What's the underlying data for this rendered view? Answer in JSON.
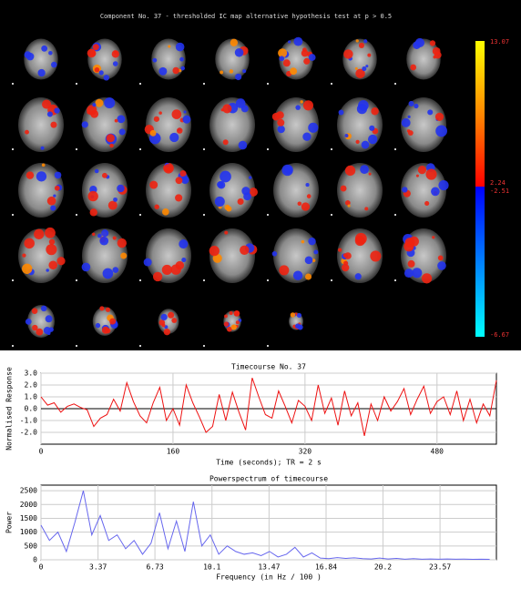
{
  "image_panel": {
    "title": "Component No. 37 - thresholded IC map   alternative hypothesis test at p > 0.5",
    "colorbar_labels": [
      "13.07",
      "2.24",
      "-2.51",
      "-6.67"
    ]
  },
  "chart_data": [
    {
      "type": "line",
      "title": "Timecourse No. 37",
      "xlabel": "Time (seconds); TR = 2 s",
      "ylabel": "Normalised Response",
      "color": "#ee1111",
      "grid": true,
      "x": [
        0,
        8,
        16,
        24,
        32,
        40,
        48,
        56,
        64,
        72,
        80,
        88,
        96,
        104,
        112,
        120,
        128,
        136,
        144,
        152,
        160,
        168,
        176,
        184,
        192,
        200,
        208,
        216,
        224,
        232,
        240,
        248,
        256,
        264,
        272,
        280,
        288,
        296,
        304,
        312,
        320,
        328,
        336,
        344,
        352,
        360,
        368,
        376,
        384,
        392,
        400,
        408,
        416,
        424,
        432,
        440,
        448,
        456,
        464,
        472,
        480,
        488,
        496,
        504,
        512,
        520,
        528,
        536,
        544,
        552
      ],
      "values": [
        1.0,
        0.3,
        0.5,
        -0.3,
        0.2,
        0.4,
        0.1,
        -0.1,
        -1.5,
        -0.8,
        -0.5,
        0.8,
        -0.2,
        2.2,
        0.6,
        -0.6,
        -1.2,
        0.5,
        1.8,
        -1.0,
        0.0,
        -1.4,
        2.0,
        0.5,
        -0.7,
        -2.0,
        -1.5,
        1.2,
        -1.0,
        1.4,
        -0.3,
        -1.8,
        2.6,
        1.0,
        -0.5,
        -0.8,
        1.5,
        0.2,
        -1.2,
        0.7,
        0.2,
        -1.0,
        2.0,
        -0.4,
        0.9,
        -1.4,
        1.5,
        -0.6,
        0.5,
        -2.3,
        0.4,
        -1.0,
        1.0,
        -0.2,
        0.6,
        1.7,
        -0.5,
        0.8,
        1.9,
        -0.4,
        0.6,
        1.0,
        -0.5,
        1.5,
        -1.0,
        0.8,
        -1.2,
        0.4,
        -0.6,
        2.4
      ],
      "xlim": [
        0,
        552
      ],
      "xticks": [
        0,
        160,
        320,
        480
      ],
      "ylim": [
        -3,
        3
      ],
      "yticks": [
        {
          "value": 3,
          "label": "3.0"
        },
        {
          "value": 2,
          "label": "2.0"
        },
        {
          "value": 1,
          "label": "1.0"
        },
        {
          "value": 0,
          "label": "0.0"
        },
        {
          "value": -1,
          "label": "-1.0"
        },
        {
          "value": -2,
          "label": "-2.0"
        }
      ]
    },
    {
      "type": "line",
      "title": "Powerspectrum of timecourse",
      "xlabel": "Frequency (in Hz / 100 )",
      "ylabel": "Power",
      "color": "#6666ee",
      "grid": true,
      "x": [
        0,
        0.5,
        1,
        1.5,
        2,
        2.5,
        3,
        3.5,
        4,
        4.5,
        5,
        5.5,
        6,
        6.5,
        7,
        7.5,
        8,
        8.5,
        9,
        9.5,
        10,
        10.5,
        11,
        11.5,
        12,
        12.5,
        13,
        13.5,
        14,
        14.5,
        15,
        15.5,
        16,
        16.5,
        17,
        17.5,
        18,
        18.5,
        19,
        19.5,
        20,
        20.5,
        21,
        21.5,
        22,
        22.5,
        23,
        23.5,
        24,
        24.5,
        25,
        25.5,
        26,
        26.5
      ],
      "values": [
        1250,
        700,
        1000,
        300,
        1350,
        2500,
        900,
        1600,
        700,
        900,
        400,
        700,
        200,
        600,
        1700,
        400,
        1400,
        300,
        2100,
        500,
        900,
        200,
        500,
        300,
        200,
        250,
        150,
        300,
        100,
        200,
        450,
        100,
        250,
        60,
        40,
        80,
        50,
        70,
        40,
        30,
        60,
        30,
        50,
        20,
        40,
        20,
        30,
        20,
        30,
        20,
        25,
        15,
        20,
        15
      ],
      "xlim": [
        0,
        26.9
      ],
      "xticks": [
        0,
        3.37,
        6.73,
        10.1,
        13.47,
        16.84,
        20.2,
        23.57
      ],
      "ylim": [
        0,
        2700
      ],
      "yticks": [
        0,
        500,
        1000,
        1500,
        2000,
        2500
      ]
    }
  ]
}
